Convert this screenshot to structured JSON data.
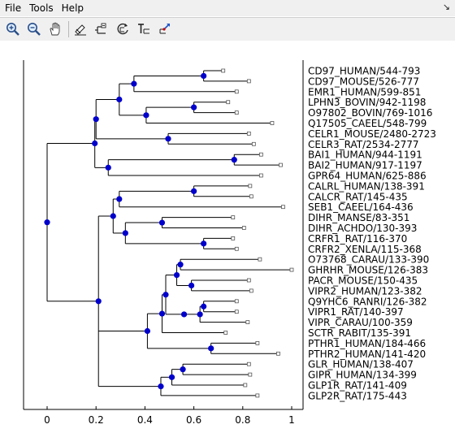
{
  "menubar": {
    "items": [
      "File",
      "Tools",
      "Help"
    ],
    "corner_glyph": "↘"
  },
  "toolbar": {
    "tools": [
      {
        "name": "zoom-in-tool",
        "icon": "zoom-in-icon"
      },
      {
        "name": "zoom-out-tool",
        "icon": "zoom-out-icon"
      },
      {
        "name": "pan-tool",
        "icon": "hand-icon"
      },
      {
        "name": "edit-branch-tool",
        "icon": "brush-icon"
      },
      {
        "name": "collapse-node-tool",
        "icon": "collapse-node-icon"
      },
      {
        "name": "rotate-node-tool",
        "icon": "rotate-node-icon"
      },
      {
        "name": "label-tool",
        "icon": "text-label-icon"
      },
      {
        "name": "reroot-tool",
        "icon": "reroot-icon"
      }
    ]
  },
  "colors": {
    "node": "#0000cc",
    "line": "#000000",
    "leaf_marker": "#ffffff",
    "chrome": "#f0f0f0"
  },
  "chart_data": {
    "type": "tree",
    "x_ticks": [
      "0",
      "0.2",
      "0.4",
      "0.6",
      "0.8",
      "1"
    ],
    "xlim": [
      -0.1,
      1.05
    ],
    "tree": {
      "x": 0.0,
      "children": [
        {
          "x": 0.195,
          "children": [
            {
              "x": 0.2,
              "children": [
                {
                  "x": 0.295,
                  "children": [
                    {
                      "x": 0.355,
                      "children": [
                        {
                          "x": 0.64,
                          "children": [
                            {
                              "name": "CD97_HUMAN/544-793",
                              "x": 0.72
                            },
                            {
                              "name": "CD97_MOUSE/526-777",
                              "x": 0.825
                            }
                          ]
                        },
                        {
                          "name": "EMR1_HUMAN/599-851",
                          "x": 0.775
                        }
                      ]
                    },
                    {
                      "x": 0.405,
                      "children": [
                        {
                          "x": 0.6,
                          "children": [
                            {
                              "name": "LPHN3_BOVIN/942-1198",
                              "x": 0.74
                            },
                            {
                              "name": "O97802_BOVIN/769-1016",
                              "x": 0.775
                            }
                          ]
                        },
                        {
                          "name": "Q17505_CAEEL/548-799",
                          "x": 0.92
                        }
                      ]
                    }
                  ]
                },
                {
                  "x": 0.495,
                  "children": [
                    {
                      "name": "CELR1_MOUSE/2480-2723",
                      "x": 0.825
                    },
                    {
                      "name": "CELR3_RAT/2534-2777",
                      "x": 0.845
                    }
                  ]
                }
              ]
            },
            {
              "x": 0.25,
              "children": [
                {
                  "x": 0.765,
                  "children": [
                    {
                      "name": "BAI1_HUMAN/944-1191",
                      "x": 0.875
                    },
                    {
                      "name": "BAI2_HUMAN/917-1197",
                      "x": 0.955
                    }
                  ]
                },
                {
                  "name": "GPR64_HUMAN/625-886",
                  "x": 0.875
                }
              ]
            }
          ]
        },
        {
          "x": 0.21,
          "children": [
            {
              "x": 0.27,
              "children": [
                {
                  "x": 0.295,
                  "children": [
                    {
                      "x": 0.6,
                      "children": [
                        {
                          "name": "CALRL_HUMAN/138-391",
                          "x": 0.83
                        },
                        {
                          "name": "CALCR_RAT/145-435",
                          "x": 0.835
                        }
                      ]
                    },
                    {
                      "name": "SEB1_CAEEL/164-436",
                      "x": 0.965
                    }
                  ]
                },
                {
                  "x": 0.32,
                  "children": [
                    {
                      "x": 0.47,
                      "children": [
                        {
                          "name": "DIHR_MANSE/83-351",
                          "x": 0.76
                        },
                        {
                          "name": "DIHR_ACHDO/130-393",
                          "x": 0.805
                        }
                      ]
                    },
                    {
                      "x": 0.64,
                      "children": [
                        {
                          "name": "CRFR1_RAT/116-370",
                          "x": 0.76
                        },
                        {
                          "name": "CRFR2_XENLA/115-368",
                          "x": 0.775
                        }
                      ]
                    }
                  ]
                }
              ]
            },
            {
              "x": 0.41,
              "children": [
                {
                  "x": 0.47,
                  "children": [
                    {
                      "x": 0.485,
                      "children": [
                        {
                          "x": 0.53,
                          "children": [
                            {
                              "x": 0.545,
                              "children": [
                                {
                                  "name": "O73768_CARAU/133-390",
                                  "x": 0.87
                                },
                                {
                                  "name": "GHRHR_MOUSE/126-383",
                                  "x": 1.0
                                }
                              ]
                            },
                            {
                              "x": 0.59,
                              "children": [
                                {
                                  "name": "PACR_MOUSE/150-435",
                                  "x": 0.825
                                },
                                {
                                  "name": "VIPR2_HUMAN/123-382",
                                  "x": 0.835
                                }
                              ]
                            }
                          ]
                        },
                        {
                          "x": 0.56,
                          "children": [
                            {
                              "x": 0.625,
                              "children": [
                                {
                                  "x": 0.64,
                                  "children": [
                                    {
                                      "name": "Q9YHC6_RANRI/126-382",
                                      "x": 0.775
                                    },
                                    {
                                      "name": "VIPR1_RAT/140-397",
                                      "x": 0.775
                                    }
                                  ]
                                },
                                {
                                  "name": "VIPR_CARAU/100-359",
                                  "x": 0.82
                                }
                              ]
                            }
                          ]
                        }
                      ]
                    },
                    {
                      "name": "SCTR_RABIT/135-391",
                      "x": 0.73
                    }
                  ]
                },
                {
                  "x": 0.67,
                  "children": [
                    {
                      "name": "PTHR1_HUMAN/184-466",
                      "x": 0.86
                    },
                    {
                      "name": "PTHR2_HUMAN/141-420",
                      "x": 0.945
                    }
                  ]
                }
              ]
            },
            {
              "x": 0.465,
              "children": [
                {
                  "x": 0.51,
                  "children": [
                    {
                      "x": 0.555,
                      "children": [
                        {
                          "name": "GLR_HUMAN/138-407",
                          "x": 0.825
                        },
                        {
                          "name": "GIPR_HUMAN/134-399",
                          "x": 0.83
                        }
                      ]
                    },
                    {
                      "name": "GLP1R_RAT/141-409",
                      "x": 0.81
                    }
                  ]
                },
                {
                  "name": "GLP2R_RAT/175-443",
                  "x": 0.86
                }
              ]
            }
          ]
        }
      ]
    }
  }
}
